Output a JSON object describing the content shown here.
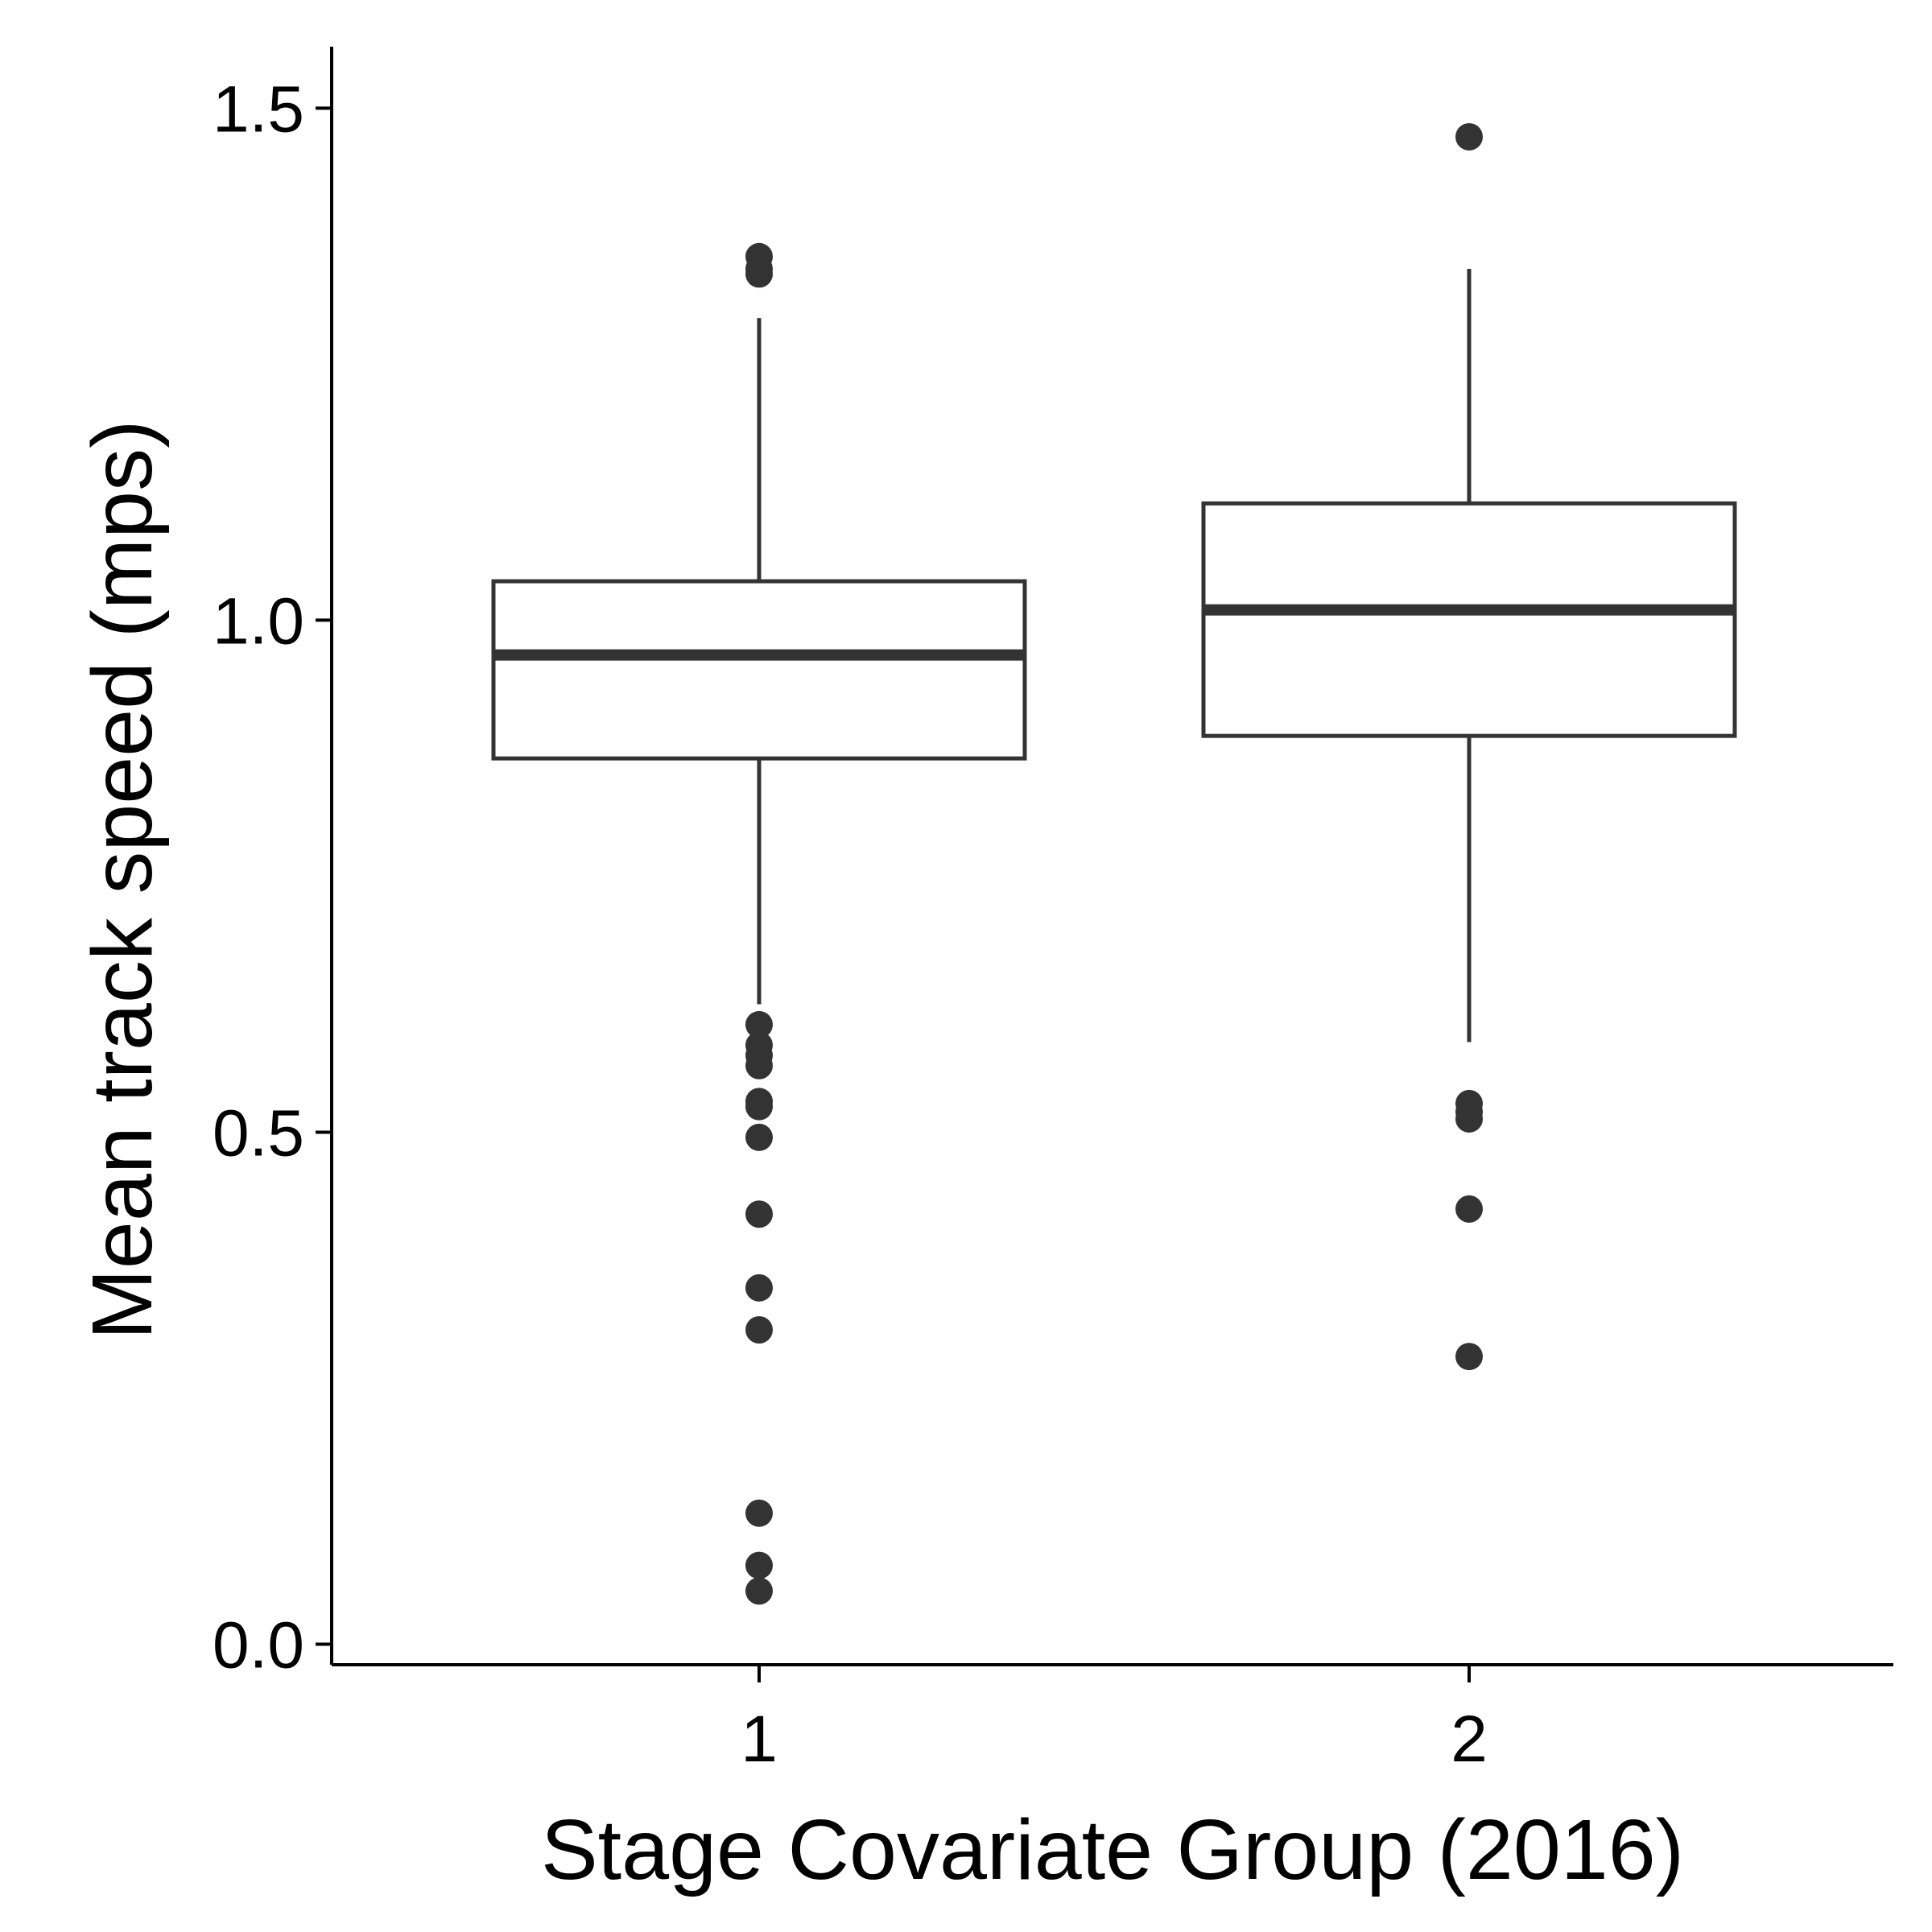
{
  "chart_data": {
    "type": "box",
    "title": "",
    "xlabel": "Stage Covariate Group (2016)",
    "ylabel": "Mean track speed (mps)",
    "ylim": [
      -0.02,
      1.56
    ],
    "yticks": [
      0.0,
      0.5,
      1.0,
      1.5
    ],
    "ytick_labels": [
      "0.0",
      "0.5",
      "1.0",
      "1.5"
    ],
    "grid": false,
    "legend": "none",
    "colors": {
      "box_stroke": "#333333",
      "outlier": "#333333",
      "axis": "#000000",
      "box_fill": "#ffffff"
    },
    "groups": [
      {
        "category": "1",
        "whisker_low": 0.625,
        "q1": 0.865,
        "median": 0.966,
        "q3": 1.038,
        "whisker_high": 1.295,
        "outliers": [
          1.355,
          1.343,
          1.338,
          0.605,
          0.585,
          0.575,
          0.565,
          0.53,
          0.525,
          0.495,
          0.42,
          0.348,
          0.307,
          0.128,
          0.077,
          0.052
        ]
      },
      {
        "category": "2",
        "whisker_low": 0.588,
        "q1": 0.887,
        "median": 1.01,
        "q3": 1.114,
        "whisker_high": 1.343,
        "outliers": [
          1.472,
          0.528,
          0.52,
          0.513,
          0.425,
          0.281
        ]
      }
    ]
  }
}
